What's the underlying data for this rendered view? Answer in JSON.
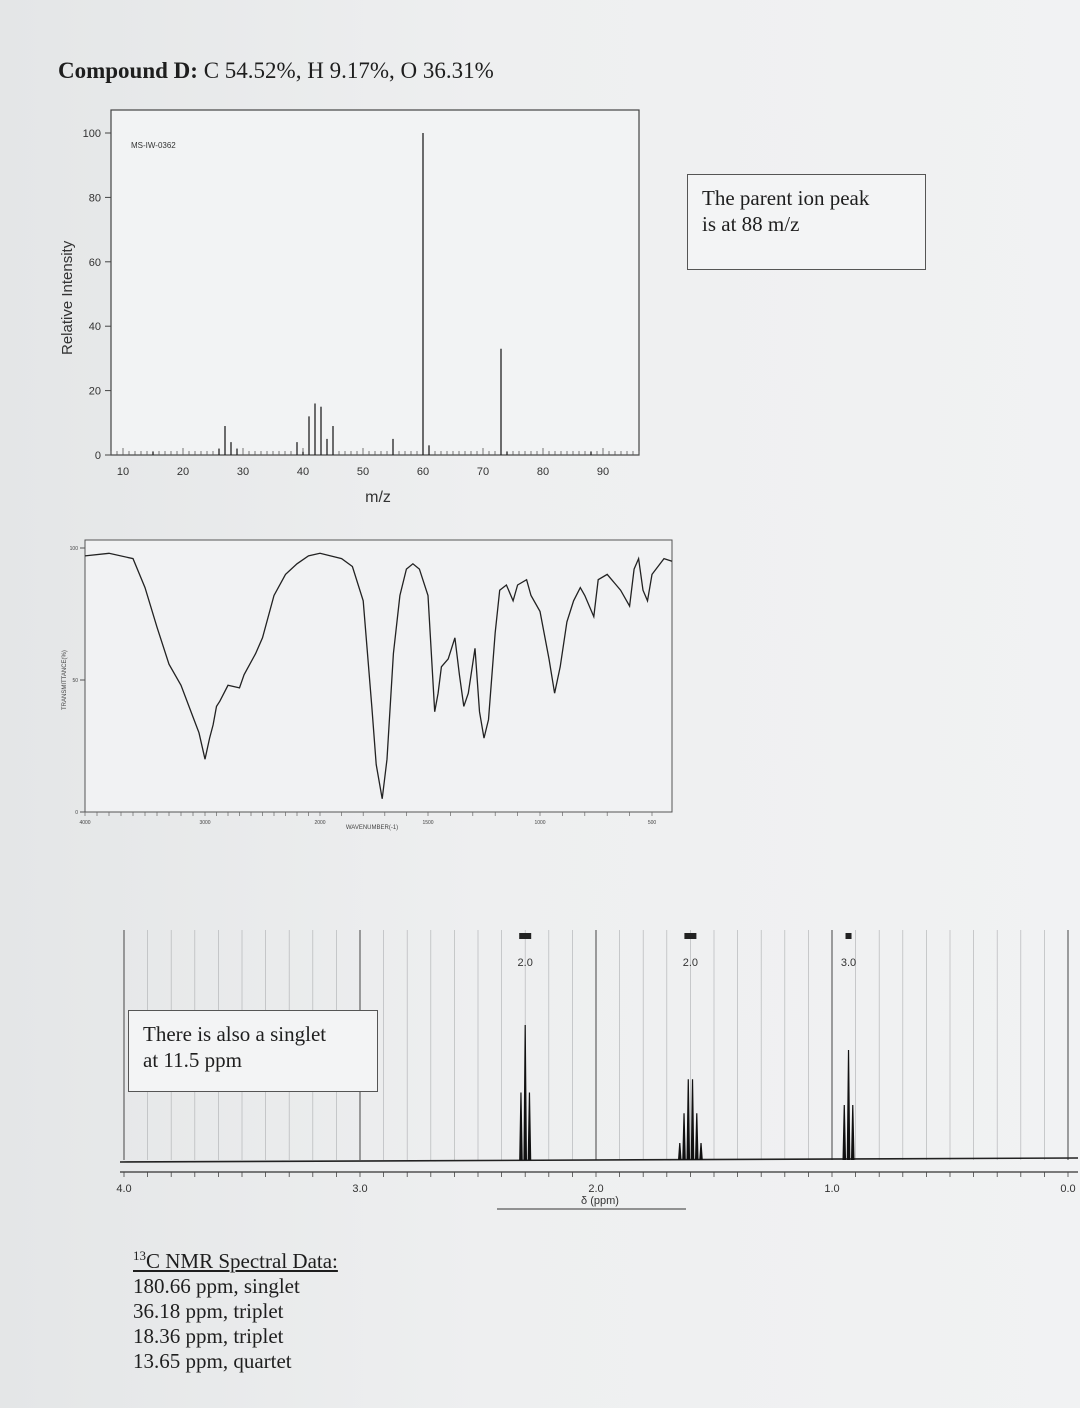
{
  "title": {
    "compound": "Compound D:",
    "composition": "C 54.52%, H 9.17%, O 36.31%"
  },
  "ms": {
    "ylabel": "Relative Intensity",
    "xlabel": "m/z",
    "code": "MS-IW-0362",
    "y_ticks": [
      "100",
      "80",
      "60",
      "40",
      "20",
      "0"
    ],
    "x_ticks": [
      "10",
      "20",
      "30",
      "40",
      "50",
      "60",
      "70",
      "80",
      "90"
    ]
  },
  "parent_note": {
    "line1": "The parent ion peak",
    "line2": "is at 88 m/z"
  },
  "ir": {
    "ylabel": "TRANSMITTANCE(%)",
    "xlabel": "WAVENUMBER(-1)",
    "y_ticks": [
      "100",
      "50",
      "0"
    ],
    "x_ticks": [
      "4000",
      "3000",
      "2000",
      "1500",
      "1000",
      "500"
    ]
  },
  "hnmr": {
    "xlabel": "δ (ppm)",
    "x_ticks": [
      "4.0",
      "3.0",
      "2.0",
      "1.0",
      "0.0"
    ],
    "integrations": [
      "2.0",
      "2.0",
      "3.0"
    ]
  },
  "singlet_note": {
    "line1": "There is also a singlet",
    "line2": "at 11.5 ppm"
  },
  "c13": {
    "header_sup": "13",
    "header": "C NMR Spectral Data:",
    "lines": [
      "180.66 ppm, singlet",
      "36.18 ppm, triplet",
      "18.36 ppm, triplet",
      "13.65 ppm, quartet"
    ]
  },
  "chart_data": [
    {
      "type": "bar",
      "name": "mass spectrum",
      "xlabel": "m/z",
      "ylabel": "Relative Intensity",
      "xlim": [
        8,
        96
      ],
      "ylim": [
        0,
        100
      ],
      "grid": false,
      "peaks": [
        {
          "x": 15,
          "y": 1
        },
        {
          "x": 26,
          "y": 2
        },
        {
          "x": 27,
          "y": 9
        },
        {
          "x": 28,
          "y": 4
        },
        {
          "x": 29,
          "y": 2
        },
        {
          "x": 39,
          "y": 4
        },
        {
          "x": 40,
          "y": 1
        },
        {
          "x": 41,
          "y": 12
        },
        {
          "x": 42,
          "y": 16
        },
        {
          "x": 43,
          "y": 15
        },
        {
          "x": 44,
          "y": 5
        },
        {
          "x": 45,
          "y": 9
        },
        {
          "x": 55,
          "y": 5
        },
        {
          "x": 60,
          "y": 100
        },
        {
          "x": 61,
          "y": 3
        },
        {
          "x": 73,
          "y": 33
        },
        {
          "x": 74,
          "y": 1
        },
        {
          "x": 88,
          "y": 1
        }
      ]
    },
    {
      "type": "line",
      "name": "IR spectrum",
      "xlabel": "WAVENUMBER(-1)",
      "ylabel": "TRANSMITTANCE(%)",
      "xlim": [
        4000,
        450
      ],
      "ylim": [
        0,
        100
      ],
      "grid": false,
      "points": [
        [
          4000,
          97
        ],
        [
          3800,
          98
        ],
        [
          3600,
          96
        ],
        [
          3500,
          85
        ],
        [
          3400,
          70
        ],
        [
          3300,
          56
        ],
        [
          3200,
          48
        ],
        [
          3100,
          36
        ],
        [
          3050,
          30
        ],
        [
          3000,
          20
        ],
        [
          2960,
          28
        ],
        [
          2930,
          33
        ],
        [
          2900,
          40
        ],
        [
          2870,
          42
        ],
        [
          2800,
          48
        ],
        [
          2700,
          47
        ],
        [
          2660,
          52
        ],
        [
          2560,
          60
        ],
        [
          2500,
          66
        ],
        [
          2400,
          82
        ],
        [
          2300,
          90
        ],
        [
          2200,
          94
        ],
        [
          2100,
          97
        ],
        [
          2000,
          98
        ],
        [
          1900,
          96
        ],
        [
          1850,
          93
        ],
        [
          1800,
          80
        ],
        [
          1760,
          40
        ],
        [
          1740,
          18
        ],
        [
          1712,
          5
        ],
        [
          1690,
          20
        ],
        [
          1660,
          60
        ],
        [
          1630,
          82
        ],
        [
          1600,
          92
        ],
        [
          1570,
          94
        ],
        [
          1540,
          92
        ],
        [
          1500,
          82
        ],
        [
          1470,
          38
        ],
        [
          1455,
          45
        ],
        [
          1440,
          55
        ],
        [
          1410,
          58
        ],
        [
          1380,
          66
        ],
        [
          1360,
          52
        ],
        [
          1340,
          40
        ],
        [
          1320,
          45
        ],
        [
          1290,
          62
        ],
        [
          1270,
          38
        ],
        [
          1250,
          28
        ],
        [
          1230,
          35
        ],
        [
          1200,
          68
        ],
        [
          1180,
          84
        ],
        [
          1150,
          86
        ],
        [
          1120,
          80
        ],
        [
          1100,
          86
        ],
        [
          1060,
          88
        ],
        [
          1040,
          82
        ],
        [
          1000,
          76
        ],
        [
          960,
          58
        ],
        [
          935,
          45
        ],
        [
          910,
          55
        ],
        [
          880,
          72
        ],
        [
          850,
          80
        ],
        [
          820,
          85
        ],
        [
          800,
          82
        ],
        [
          760,
          74
        ],
        [
          740,
          88
        ],
        [
          700,
          90
        ],
        [
          660,
          86
        ],
        [
          640,
          84
        ],
        [
          600,
          78
        ],
        [
          580,
          92
        ],
        [
          560,
          96
        ],
        [
          540,
          84
        ],
        [
          520,
          80
        ],
        [
          500,
          90
        ],
        [
          470,
          96
        ],
        [
          450,
          95
        ]
      ]
    },
    {
      "type": "line",
      "name": "1H NMR spectrum",
      "xlabel": "δ (ppm)",
      "xlim": [
        4.0,
        0.0
      ],
      "grid": true,
      "multiplets": [
        {
          "center": 2.3,
          "multiplicity": "triplet",
          "integration": "2.0"
        },
        {
          "center": 1.6,
          "multiplicity": "sextet",
          "integration": "2.0"
        },
        {
          "center": 0.93,
          "multiplicity": "triplet",
          "integration": "3.0"
        }
      ]
    }
  ]
}
